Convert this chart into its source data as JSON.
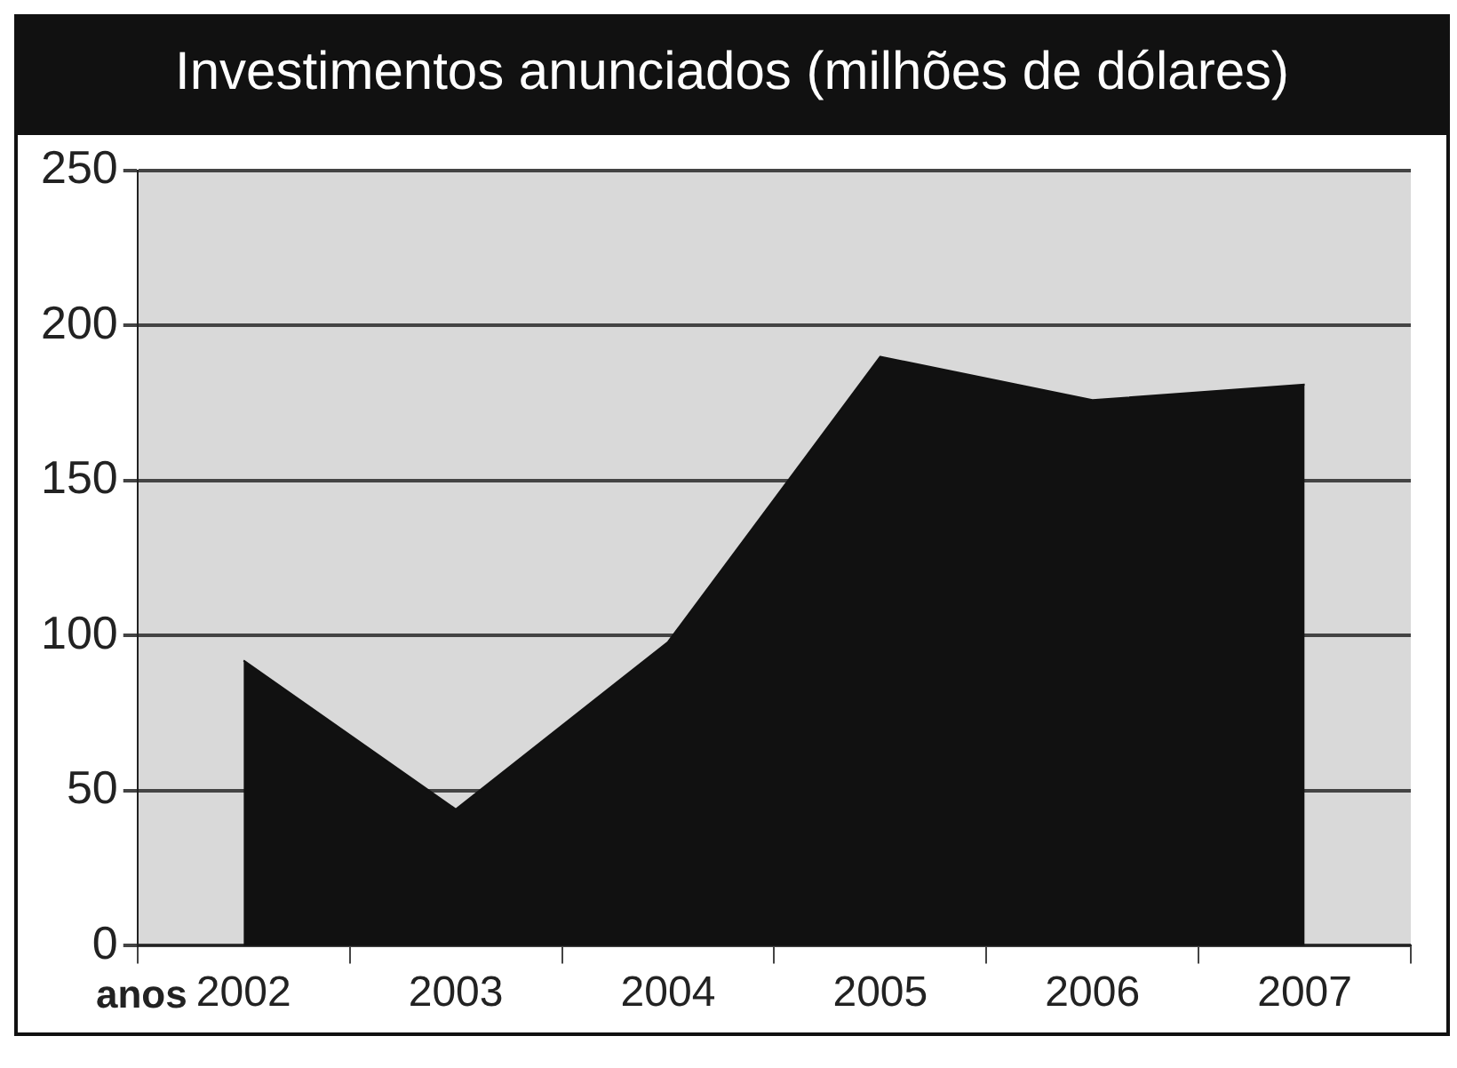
{
  "chart_data": {
    "type": "area",
    "title": "Investimentos anunciados (milhões de dólares)",
    "xlabel": "anos",
    "categories": [
      "2002",
      "2003",
      "2004",
      "2005",
      "2006",
      "2007"
    ],
    "series": [
      {
        "color": "#111111",
        "values": [
          92,
          44,
          98,
          190,
          176,
          181
        ]
      }
    ],
    "ylim": [
      0,
      250
    ],
    "yticks": [
      0,
      50,
      100,
      150,
      200,
      250
    ],
    "grid": "y",
    "legend": false
  }
}
